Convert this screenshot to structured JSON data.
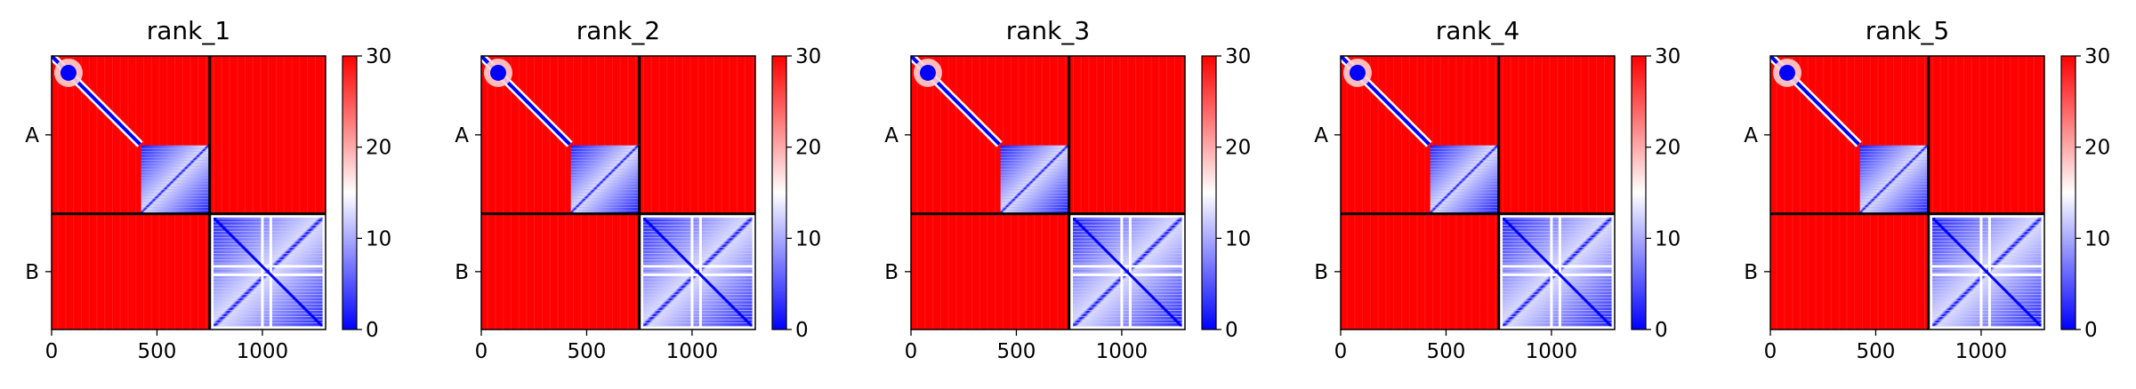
{
  "chart_data": [
    {
      "type": "heatmap",
      "title": "rank_1",
      "xlim": [
        0,
        1300
      ],
      "ylim": [
        1300,
        0
      ],
      "x_ticks": [
        0,
        500,
        1000
      ],
      "y_tick_labels": [
        {
          "label": "A",
          "value": 375
        },
        {
          "label": "B",
          "value": 1025
        }
      ],
      "chain_boundary": 750,
      "colorbar": {
        "min": 0,
        "max": 30,
        "ticks": [
          0,
          10,
          20,
          30
        ],
        "colors": [
          "#0000ff",
          "#ffffff",
          "#ff0000"
        ]
      }
    },
    {
      "type": "heatmap",
      "title": "rank_2",
      "xlim": [
        0,
        1300
      ],
      "ylim": [
        1300,
        0
      ],
      "x_ticks": [
        0,
        500,
        1000
      ],
      "y_tick_labels": [
        {
          "label": "A",
          "value": 375
        },
        {
          "label": "B",
          "value": 1025
        }
      ],
      "chain_boundary": 750,
      "colorbar": {
        "min": 0,
        "max": 30,
        "ticks": [
          0,
          10,
          20,
          30
        ],
        "colors": [
          "#0000ff",
          "#ffffff",
          "#ff0000"
        ]
      }
    },
    {
      "type": "heatmap",
      "title": "rank_3",
      "xlim": [
        0,
        1300
      ],
      "ylim": [
        1300,
        0
      ],
      "x_ticks": [
        0,
        500,
        1000
      ],
      "y_tick_labels": [
        {
          "label": "A",
          "value": 375
        },
        {
          "label": "B",
          "value": 1025
        }
      ],
      "chain_boundary": 750,
      "colorbar": {
        "min": 0,
        "max": 30,
        "ticks": [
          0,
          10,
          20,
          30
        ],
        "colors": [
          "#0000ff",
          "#ffffff",
          "#ff0000"
        ]
      }
    },
    {
      "type": "heatmap",
      "title": "rank_4",
      "xlim": [
        0,
        1300
      ],
      "ylim": [
        1300,
        0
      ],
      "x_ticks": [
        0,
        500,
        1000
      ],
      "y_tick_labels": [
        {
          "label": "A",
          "value": 375
        },
        {
          "label": "B",
          "value": 1025
        }
      ],
      "chain_boundary": 750,
      "colorbar": {
        "min": 0,
        "max": 30,
        "ticks": [
          0,
          10,
          20,
          30
        ],
        "colors": [
          "#0000ff",
          "#ffffff",
          "#ff0000"
        ]
      }
    },
    {
      "type": "heatmap",
      "title": "rank_5",
      "xlim": [
        0,
        1300
      ],
      "ylim": [
        1300,
        0
      ],
      "x_ticks": [
        0,
        500,
        1000
      ],
      "y_tick_labels": [
        {
          "label": "A",
          "value": 375
        },
        {
          "label": "B",
          "value": 1025
        }
      ],
      "chain_boundary": 750,
      "colorbar": {
        "min": 0,
        "max": 30,
        "ticks": [
          0,
          10,
          20,
          30
        ],
        "colors": [
          "#0000ff",
          "#ffffff",
          "#ff0000"
        ]
      }
    }
  ]
}
